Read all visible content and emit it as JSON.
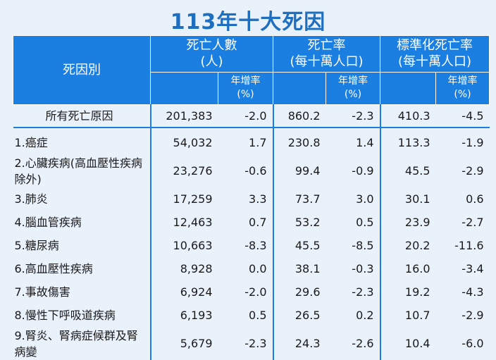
{
  "title": "113年十大死因",
  "header": {
    "cause": "死因別",
    "deaths": "死亡人數",
    "deaths_unit": "(人)",
    "rate": "死亡率",
    "rate_unit": "(每十萬人口)",
    "std_rate": "標準化死亡率",
    "std_rate_unit": "(每十萬人口)",
    "growth": "年增率",
    "growth_unit": "(%)"
  },
  "total": {
    "name": "所有死亡原因",
    "deaths": "201,383",
    "deaths_g": "-2.0",
    "rate": "860.2",
    "rate_g": "-2.3",
    "std": "410.3",
    "std_g": "-4.5"
  },
  "rows": [
    {
      "name": "1.癌症",
      "deaths": "54,032",
      "deaths_g": "1.7",
      "rate": "230.8",
      "rate_g": "1.4",
      "std": "113.3",
      "std_g": "-1.9"
    },
    {
      "name": "2.心臟疾病(高血壓性疾病除外)",
      "deaths": "23,276",
      "deaths_g": "-0.6",
      "rate": "99.4",
      "rate_g": "-0.9",
      "std": "45.5",
      "std_g": "-2.9"
    },
    {
      "name": "3.肺炎",
      "deaths": "17,259",
      "deaths_g": "3.3",
      "rate": "73.7",
      "rate_g": "3.0",
      "std": "30.1",
      "std_g": "0.6"
    },
    {
      "name": "4.腦血管疾病",
      "deaths": "12,463",
      "deaths_g": "0.7",
      "rate": "53.2",
      "rate_g": "0.5",
      "std": "23.9",
      "std_g": "-2.7"
    },
    {
      "name": "5.糖尿病",
      "deaths": "10,663",
      "deaths_g": "-8.3",
      "rate": "45.5",
      "rate_g": "-8.5",
      "std": "20.2",
      "std_g": "-11.6"
    },
    {
      "name": "6.高血壓性疾病",
      "deaths": "8,928",
      "deaths_g": "0.0",
      "rate": "38.1",
      "rate_g": "-0.3",
      "std": "16.0",
      "std_g": "-3.4"
    },
    {
      "name": "7.事故傷害",
      "deaths": "6,924",
      "deaths_g": "-2.0",
      "rate": "29.6",
      "rate_g": "-2.3",
      "std": "19.2",
      "std_g": "-4.3"
    },
    {
      "name": "8.慢性下呼吸道疾病",
      "deaths": "6,193",
      "deaths_g": "0.5",
      "rate": "26.5",
      "rate_g": "0.2",
      "std": "10.7",
      "std_g": "-2.9"
    },
    {
      "name": "9.腎炎、腎病症候群及腎病變",
      "deaths": "5,679",
      "deaths_g": "-2.3",
      "rate": "24.3",
      "rate_g": "-2.6",
      "std": "10.4",
      "std_g": "-6.0"
    }
  ]
}
